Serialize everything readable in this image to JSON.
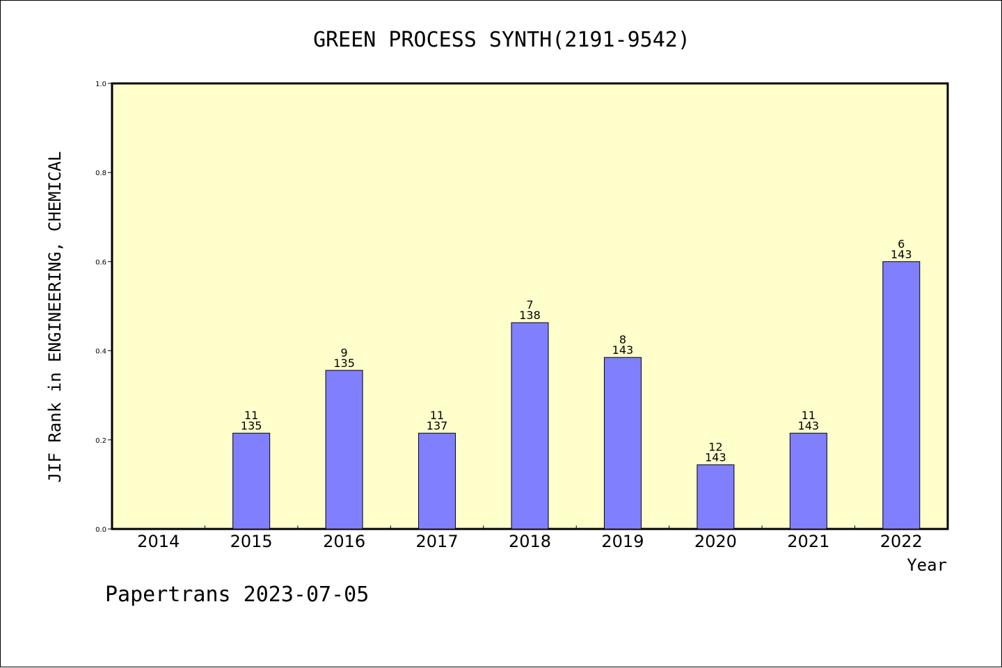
{
  "footer": "Papertrans 2023-07-05",
  "chart_data": {
    "type": "bar",
    "title": "GREEN PROCESS SYNTH(2191-9542)",
    "xlabel": "Year",
    "ylabel": "JIF Rank in ENGINEERING, CHEMICAL",
    "ylim": [
      0,
      1.0
    ],
    "yticks": [
      "0.0",
      "0.2",
      "0.4",
      "0.6",
      "0.8",
      "1.0"
    ],
    "categories": [
      "2014",
      "2015",
      "2016",
      "2017",
      "2018",
      "2019",
      "2020",
      "2021",
      "2022"
    ],
    "values": [
      null,
      0.215,
      0.356,
      0.215,
      0.463,
      0.385,
      0.144,
      0.215,
      0.6
    ],
    "labels": [
      null,
      {
        "rank": "11",
        "total": "135"
      },
      {
        "rank": "9",
        "total": "135"
      },
      {
        "rank": "11",
        "total": "137"
      },
      {
        "rank": "7",
        "total": "138"
      },
      {
        "rank": "8",
        "total": "143"
      },
      {
        "rank": "12",
        "total": "143"
      },
      {
        "rank": "11",
        "total": "143"
      },
      {
        "rank": "6",
        "total": "143"
      }
    ],
    "grid": false,
    "colors": {
      "plot_bg": "#ffffcc",
      "bar": "#8080ff",
      "axis": "#000000"
    }
  }
}
